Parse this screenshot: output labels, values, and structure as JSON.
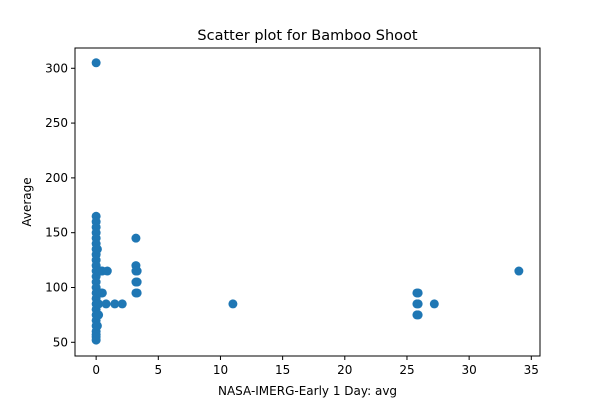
{
  "chart_data": {
    "type": "scatter",
    "title": "Scatter plot for Bamboo Shoot",
    "xlabel": "NASA-IMERG-Early 1 Day: avg",
    "ylabel": "Average",
    "xlim": [
      -1.7,
      35.7
    ],
    "ylim": [
      37.5,
      318.5
    ],
    "xticks": [
      0,
      5,
      10,
      15,
      20,
      25,
      30,
      35
    ],
    "yticks": [
      50,
      100,
      150,
      200,
      250,
      300
    ],
    "xtick_labels": [
      "0",
      "5",
      "10",
      "15",
      "20",
      "25",
      "30",
      "35"
    ],
    "ytick_labels": [
      "50",
      "100",
      "150",
      "200",
      "250",
      "300"
    ],
    "grid": false,
    "marker_color": "#1f77b4",
    "series": [
      {
        "name": "Bamboo Shoot",
        "points": [
          {
            "x": 0.0,
            "y": 305
          },
          {
            "x": 0.0,
            "y": 165
          },
          {
            "x": 0.0,
            "y": 160
          },
          {
            "x": 0.0,
            "y": 155
          },
          {
            "x": 0.0,
            "y": 150
          },
          {
            "x": 0.0,
            "y": 145
          },
          {
            "x": 0.0,
            "y": 140
          },
          {
            "x": 0.0,
            "y": 135
          },
          {
            "x": 0.0,
            "y": 130
          },
          {
            "x": 0.0,
            "y": 125
          },
          {
            "x": 0.0,
            "y": 120
          },
          {
            "x": 0.0,
            "y": 115
          },
          {
            "x": 0.0,
            "y": 110
          },
          {
            "x": 0.0,
            "y": 105
          },
          {
            "x": 0.0,
            "y": 100
          },
          {
            "x": 0.0,
            "y": 95
          },
          {
            "x": 0.0,
            "y": 90
          },
          {
            "x": 0.0,
            "y": 85
          },
          {
            "x": 0.0,
            "y": 80
          },
          {
            "x": 0.0,
            "y": 75
          },
          {
            "x": 0.0,
            "y": 70
          },
          {
            "x": 0.0,
            "y": 65
          },
          {
            "x": 0.0,
            "y": 60
          },
          {
            "x": 0.0,
            "y": 57
          },
          {
            "x": 0.0,
            "y": 55
          },
          {
            "x": 0.0,
            "y": 52
          },
          {
            "x": 0.1,
            "y": 135
          },
          {
            "x": 0.1,
            "y": 115
          },
          {
            "x": 0.1,
            "y": 95
          },
          {
            "x": 0.1,
            "y": 85
          },
          {
            "x": 0.1,
            "y": 75
          },
          {
            "x": 0.1,
            "y": 65
          },
          {
            "x": 0.2,
            "y": 115
          },
          {
            "x": 0.2,
            "y": 95
          },
          {
            "x": 0.2,
            "y": 85
          },
          {
            "x": 0.2,
            "y": 75
          },
          {
            "x": 0.3,
            "y": 115
          },
          {
            "x": 0.3,
            "y": 95
          },
          {
            "x": 0.4,
            "y": 115
          },
          {
            "x": 0.4,
            "y": 95
          },
          {
            "x": 0.5,
            "y": 115
          },
          {
            "x": 0.5,
            "y": 95
          },
          {
            "x": 0.8,
            "y": 85
          },
          {
            "x": 0.9,
            "y": 115
          },
          {
            "x": 1.5,
            "y": 85
          },
          {
            "x": 2.1,
            "y": 85
          },
          {
            "x": 3.2,
            "y": 145
          },
          {
            "x": 3.2,
            "y": 120
          },
          {
            "x": 3.2,
            "y": 115
          },
          {
            "x": 3.2,
            "y": 105
          },
          {
            "x": 3.2,
            "y": 95
          },
          {
            "x": 3.3,
            "y": 115
          },
          {
            "x": 3.3,
            "y": 105
          },
          {
            "x": 3.3,
            "y": 95
          },
          {
            "x": 11.0,
            "y": 85
          },
          {
            "x": 25.8,
            "y": 95
          },
          {
            "x": 25.8,
            "y": 85
          },
          {
            "x": 25.8,
            "y": 75
          },
          {
            "x": 25.9,
            "y": 95
          },
          {
            "x": 25.9,
            "y": 85
          },
          {
            "x": 25.9,
            "y": 75
          },
          {
            "x": 27.2,
            "y": 85
          },
          {
            "x": 34.0,
            "y": 115
          }
        ]
      }
    ]
  }
}
